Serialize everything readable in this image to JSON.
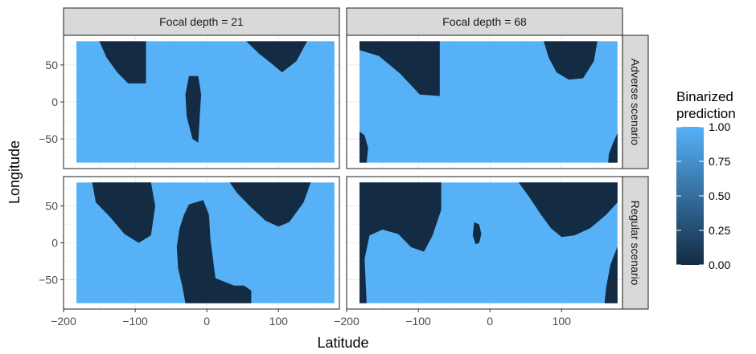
{
  "chart_data": {
    "type": "heatmap",
    "xlabel": "Latitude",
    "ylabel": "Longitude",
    "xlim": [
      -200,
      185
    ],
    "ylim": [
      -90,
      90
    ],
    "xticks": [
      -200,
      -100,
      0,
      100
    ],
    "xtick_labels": [
      "−200",
      "−100",
      "0",
      "100"
    ],
    "yticks": [
      -50,
      0,
      50
    ],
    "ytick_labels": [
      "−50",
      "0",
      "50"
    ],
    "grid": true,
    "data_extent": {
      "x": [
        -182,
        178
      ],
      "y": [
        -82,
        82
      ]
    },
    "facets": {
      "columns": [
        "Focal depth = 21",
        "Focal depth = 68"
      ],
      "rows": [
        "Adverse scenario",
        "Regular scenario"
      ]
    },
    "legend": {
      "title_lines": [
        "Binarized",
        "prediction"
      ],
      "placement": "right",
      "labels": [
        "1.00",
        "0.75",
        "0.50",
        "0.25",
        "0.00"
      ],
      "values": [
        1.0,
        0.75,
        0.5,
        0.25,
        0.0
      ],
      "color_low": "#132b43",
      "color_high": "#56b1f7"
    },
    "panels": [
      {
        "row": "Adverse scenario",
        "column": "Focal depth = 21",
        "background_value": 1,
        "zero_regions": [
          [
            [
              -150,
              82
            ],
            [
              -85,
              82
            ],
            [
              -85,
              25
            ],
            [
              -110,
              25
            ],
            [
              -125,
              40
            ],
            [
              -140,
              60
            ]
          ],
          [
            [
              55,
              82
            ],
            [
              140,
              82
            ],
            [
              125,
              55
            ],
            [
              105,
              40
            ],
            [
              90,
              52
            ],
            [
              72,
              66
            ]
          ],
          [
            [
              -25,
              35
            ],
            [
              -12,
              35
            ],
            [
              -8,
              10
            ],
            [
              -10,
              -20
            ],
            [
              -12,
              -55
            ],
            [
              -20,
              -50
            ],
            [
              -28,
              -20
            ],
            [
              -30,
              10
            ]
          ]
        ]
      },
      {
        "row": "Adverse scenario",
        "column": "Focal depth = 68",
        "background_value": 1,
        "zero_regions": [
          [
            [
              -182,
              82
            ],
            [
              -70,
              82
            ],
            [
              -70,
              8
            ],
            [
              -98,
              10
            ],
            [
              -125,
              38
            ],
            [
              -155,
              62
            ],
            [
              -182,
              70
            ]
          ],
          [
            [
              75,
              82
            ],
            [
              150,
              82
            ],
            [
              145,
              55
            ],
            [
              130,
              32
            ],
            [
              110,
              30
            ],
            [
              93,
              40
            ],
            [
              82,
              60
            ]
          ],
          [
            [
              -182,
              -40
            ],
            [
              -175,
              -45
            ],
            [
              -170,
              -62
            ],
            [
              -172,
              -82
            ],
            [
              -182,
              -82
            ]
          ],
          [
            [
              178,
              -42
            ],
            [
              172,
              -55
            ],
            [
              166,
              -70
            ],
            [
              165,
              -82
            ],
            [
              178,
              -82
            ]
          ]
        ]
      },
      {
        "row": "Regular scenario",
        "column": "Focal depth = 21",
        "background_value": 1,
        "zero_regions": [
          [
            [
              -160,
              82
            ],
            [
              -78,
              82
            ],
            [
              -72,
              50
            ],
            [
              -78,
              10
            ],
            [
              -95,
              0
            ],
            [
              -115,
              12
            ],
            [
              -135,
              35
            ],
            [
              -155,
              55
            ]
          ],
          [
            [
              32,
              82
            ],
            [
              145,
              82
            ],
            [
              135,
              55
            ],
            [
              115,
              28
            ],
            [
              100,
              22
            ],
            [
              82,
              30
            ],
            [
              62,
              48
            ],
            [
              42,
              68
            ]
          ],
          [
            [
              -25,
              52
            ],
            [
              -5,
              58
            ],
            [
              3,
              38
            ],
            [
              5,
              5
            ],
            [
              12,
              -48
            ],
            [
              38,
              -58
            ],
            [
              52,
              -58
            ],
            [
              62,
              -65
            ],
            [
              62,
              -82
            ],
            [
              -30,
              -82
            ],
            [
              -34,
              -60
            ],
            [
              -40,
              -35
            ],
            [
              -42,
              -5
            ],
            [
              -38,
              20
            ],
            [
              -32,
              38
            ]
          ]
        ]
      },
      {
        "row": "Regular scenario",
        "column": "Focal depth = 68",
        "background_value": 1,
        "zero_regions": [
          [
            [
              -182,
              82
            ],
            [
              -68,
              82
            ],
            [
              -68,
              45
            ],
            [
              -80,
              10
            ],
            [
              -92,
              -12
            ],
            [
              -110,
              -6
            ],
            [
              -128,
              12
            ],
            [
              -150,
              18
            ],
            [
              -168,
              10
            ],
            [
              -175,
              -22
            ],
            [
              -172,
              -82
            ],
            [
              -182,
              -82
            ]
          ],
          [
            [
              -22,
              28
            ],
            [
              -15,
              25
            ],
            [
              -12,
              12
            ],
            [
              -15,
              0
            ],
            [
              -20,
              -2
            ],
            [
              -24,
              10
            ]
          ],
          [
            [
              40,
              82
            ],
            [
              178,
              82
            ],
            [
              178,
              55
            ],
            [
              162,
              38
            ],
            [
              140,
              20
            ],
            [
              118,
              10
            ],
            [
              100,
              8
            ],
            [
              85,
              20
            ],
            [
              70,
              40
            ],
            [
              55,
              62
            ]
          ],
          [
            [
              178,
              -5
            ],
            [
              168,
              -30
            ],
            [
              162,
              -62
            ],
            [
              160,
              -82
            ],
            [
              178,
              -82
            ]
          ]
        ]
      }
    ]
  }
}
